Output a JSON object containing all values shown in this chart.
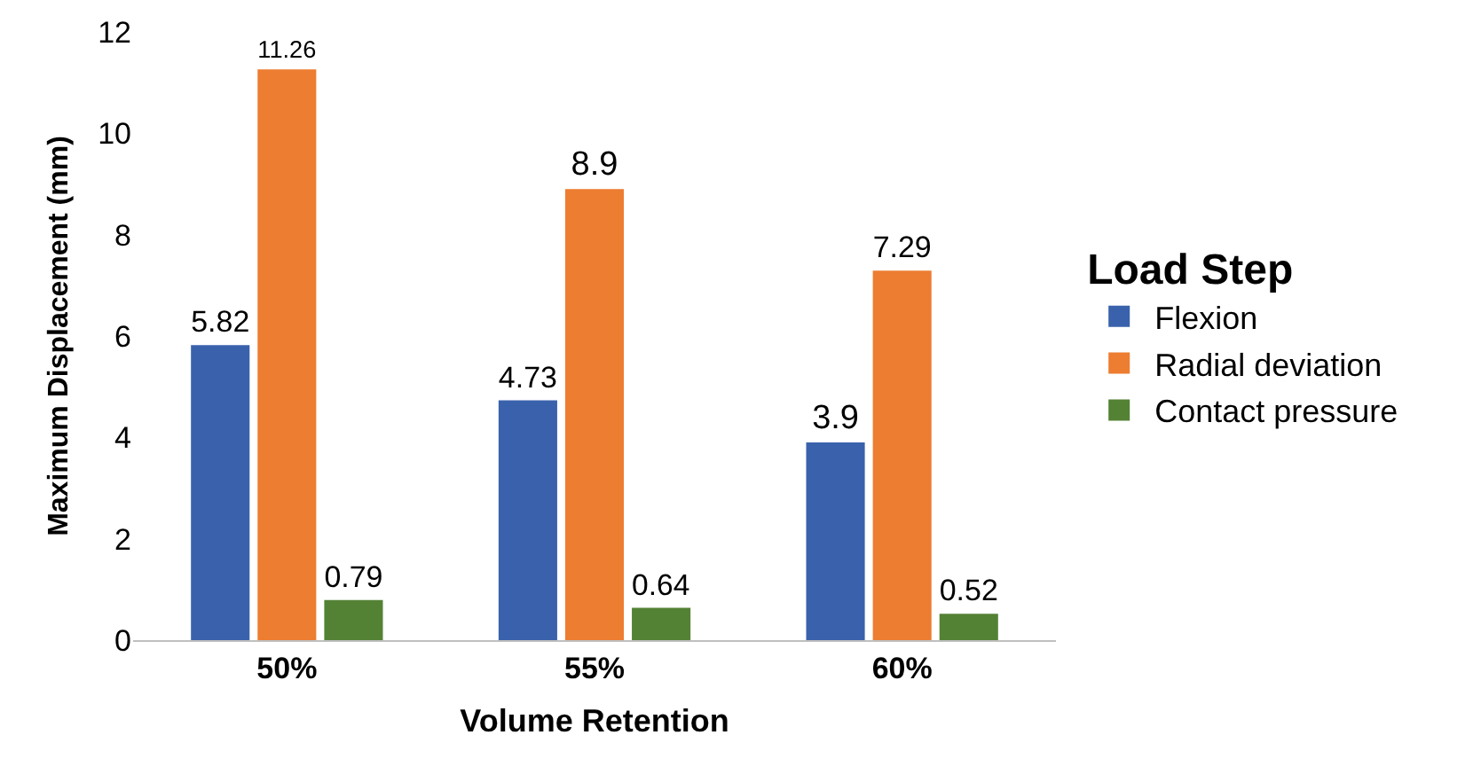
{
  "chart_data": {
    "type": "bar",
    "xlabel": "Volume Retention",
    "ylabel": "Maximum Displacement (mm)",
    "legend_title": "Load Step",
    "categories": [
      "50%",
      "55%",
      "60%"
    ],
    "series": [
      {
        "name": "Flexion",
        "color": "#3a62ac",
        "values": [
          5.82,
          4.73,
          3.9
        ]
      },
      {
        "name": "Radial deviation",
        "color": "#ed7d31",
        "values": [
          11.26,
          8.9,
          7.29
        ]
      },
      {
        "name": "Contact pressure",
        "color": "#548235",
        "values": [
          0.79,
          0.64,
          0.52
        ]
      }
    ],
    "ylim": [
      0,
      12
    ],
    "yticks": [
      0,
      2,
      4,
      6,
      8,
      10,
      12
    ],
    "grid": false,
    "legend": "right",
    "data_labels": true
  }
}
